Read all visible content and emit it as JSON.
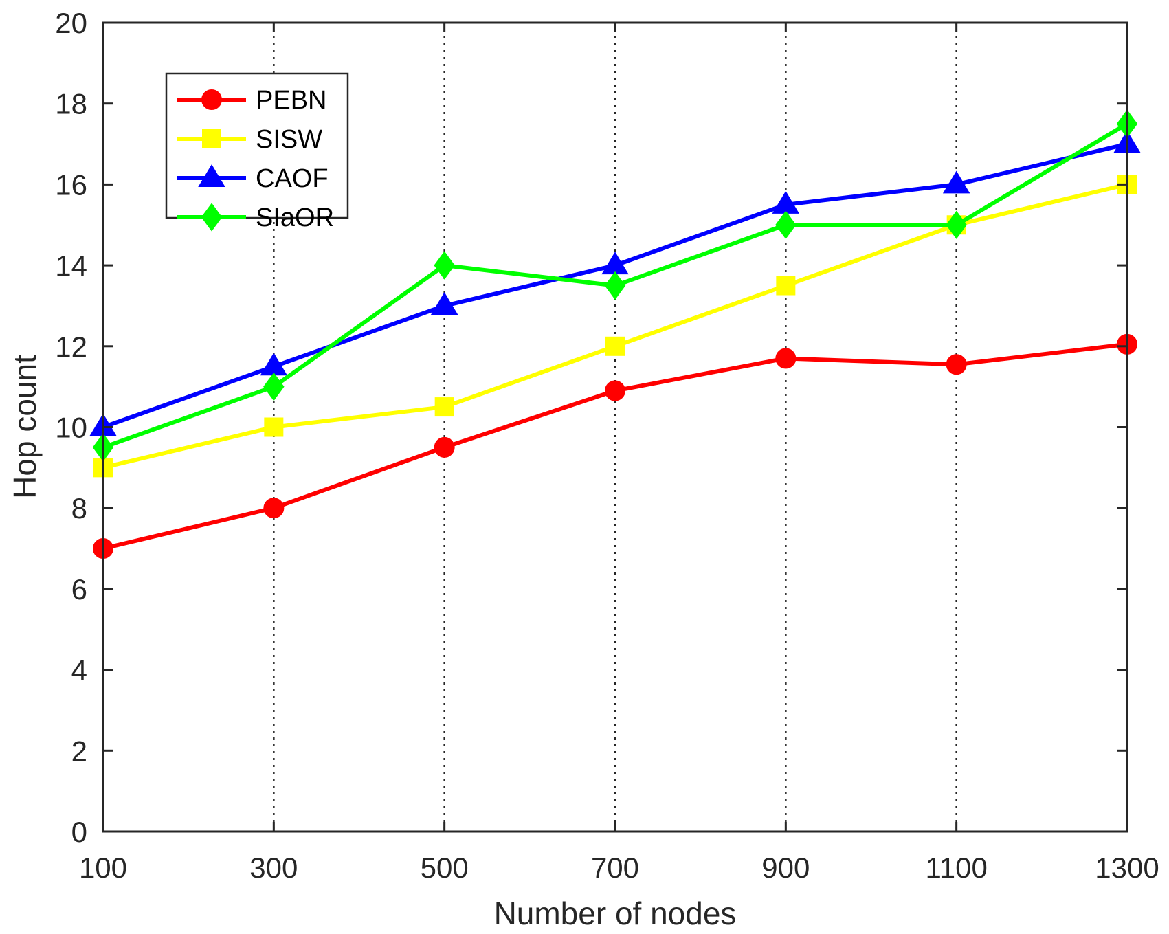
{
  "chart_data": {
    "type": "line",
    "title": "",
    "xlabel": "Number of nodes",
    "ylabel": "Hop count",
    "x": [
      100,
      300,
      500,
      700,
      900,
      1100,
      1300
    ],
    "x_tick_labels": [
      "100",
      "300",
      "500",
      "700",
      "900",
      "1100",
      "1300"
    ],
    "y_tick_labels": [
      "0",
      "2",
      "4",
      "6",
      "8",
      "10",
      "12",
      "14",
      "16",
      "18",
      "20"
    ],
    "xlim": [
      100,
      1300
    ],
    "ylim": [
      0,
      20
    ],
    "grid": "vertical dotted",
    "legend_position": "top-left",
    "series": [
      {
        "name": "PEBN",
        "color": "#ff0000",
        "marker": "circle",
        "values": [
          7,
          8,
          9.5,
          10.9,
          11.7,
          11.55,
          12.05
        ]
      },
      {
        "name": "SISW",
        "color": "#ffff00",
        "marker": "square",
        "values": [
          9,
          10,
          10.5,
          12,
          13.5,
          15,
          16
        ]
      },
      {
        "name": "CAOF",
        "color": "#0000ff",
        "marker": "triangle",
        "values": [
          10,
          11.5,
          13,
          14,
          15.5,
          16,
          17
        ]
      },
      {
        "name": "SIaOR",
        "color": "#00ff00",
        "marker": "diamond",
        "values": [
          9.5,
          11,
          14,
          13.5,
          15,
          15,
          17.5
        ]
      }
    ]
  }
}
